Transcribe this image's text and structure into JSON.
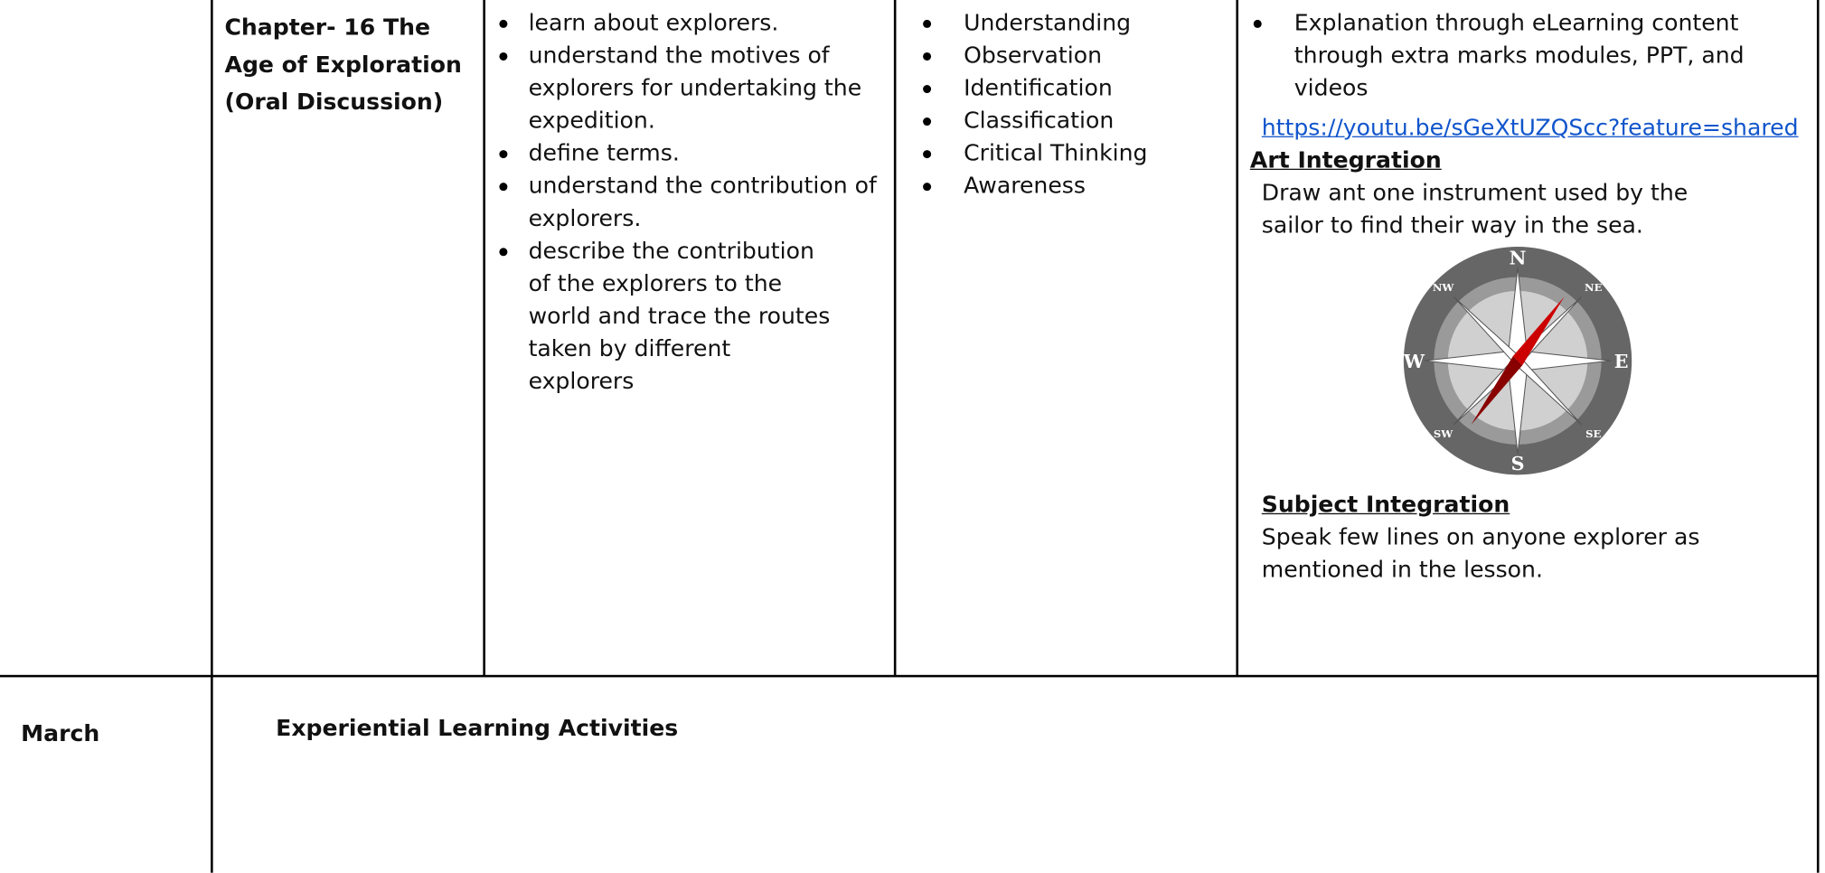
{
  "table": {
    "row1": {
      "chapter": [
        "Chapter- 16 The",
        "Age of Exploration",
        "(Oral Discussion)"
      ],
      "outcomes": [
        "learn about explorers.",
        "understand the motives of explorers for undertaking the expedition.",
        "define terms.",
        "understand the contribution of explorers.",
        "describe the contribution of the explorers to the world and trace the routes taken by different explorers"
      ],
      "skills": [
        "Understanding",
        "Observation",
        "Identification",
        "Classification",
        "Critical Thinking",
        "Awareness"
      ],
      "activities": {
        "bullet": "Explanation through eLearning content through extra marks modules, PPT, and videos",
        "link": "https://youtu.be/sGeXtUZQScc?feature=shared",
        "art_heading": "Art Integration",
        "art_text": "Draw ant one instrument used by the sailor to find their way in the sea.",
        "compass_labels": {
          "n": "N",
          "s": "S",
          "e": "E",
          "w": "W",
          "ne": "NE",
          "nw": "NW",
          "se": "SE",
          "sw": "SW"
        },
        "subject_heading": "Subject Integration",
        "subject_text": "Speak few lines on anyone explorer as mentioned in the lesson."
      }
    },
    "row2": {
      "month": "March",
      "heading": "Experiential Learning Activities"
    }
  }
}
